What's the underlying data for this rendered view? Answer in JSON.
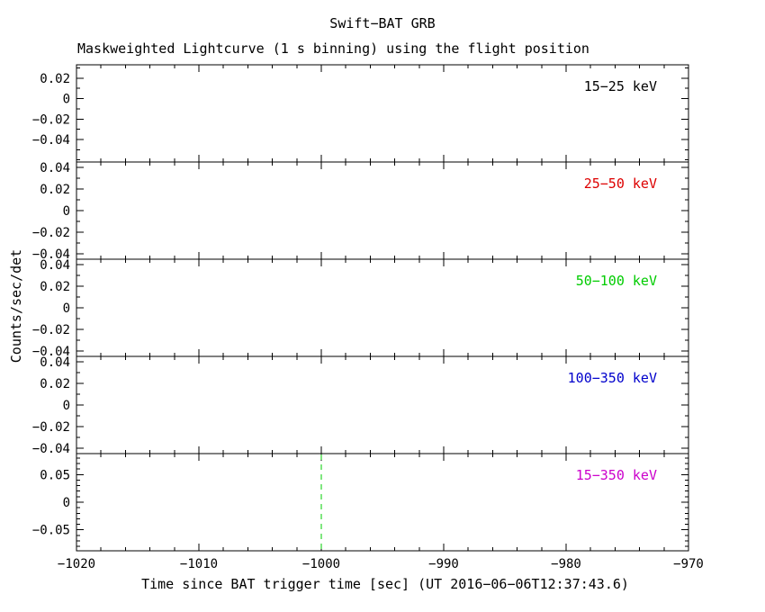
{
  "header": {
    "title": "Swift−BAT GRB",
    "subtitle": "Maskweighted Lightcurve (1 s binning) using the flight position"
  },
  "axes": {
    "xlabel": "Time since BAT trigger time [sec] (UT 2016−06−06T12:37:43.6)",
    "ylabel": "Counts/sec/det"
  },
  "chart_data": {
    "type": "line",
    "title": "Swift−BAT GRB",
    "subtitle": "Maskweighted Lightcurve (1 s binning) using the flight position",
    "xlabel": "Time since BAT trigger time [sec] (UT 2016−06−06T12:37:43.6)",
    "ylabel": "Counts/sec/det",
    "grid": false,
    "xlim": [
      -1020,
      -970
    ],
    "x_major_ticks": [
      -1020,
      -1010,
      -1000,
      -990,
      -980,
      -970
    ],
    "x_major_tick_labels": [
      "−1020",
      "−1010",
      "−1000",
      "−990",
      "−980",
      "−970"
    ],
    "x_minor_step": 2,
    "panels": [
      {
        "band": "15−25 keV",
        "color": "#000000",
        "ylim": [
          -0.062,
          0.033
        ],
        "yticks": [
          0.02,
          0,
          -0.02,
          -0.04
        ],
        "ytick_labels": [
          "0.02",
          "0",
          "−0.02",
          "−0.04"
        ],
        "y_minor_step": 0.01,
        "series": []
      },
      {
        "band": "25−50 keV",
        "color": "#dd0000",
        "ylim": [
          -0.045,
          0.045
        ],
        "yticks": [
          0.04,
          0.02,
          0,
          -0.02,
          -0.04
        ],
        "ytick_labels": [
          "0.04",
          "0.02",
          "0",
          "−0.02",
          "−0.04"
        ],
        "y_minor_step": 0.01,
        "series": []
      },
      {
        "band": "50−100 keV",
        "color": "#00cc00",
        "ylim": [
          -0.045,
          0.045
        ],
        "yticks": [
          0.04,
          0.02,
          0,
          -0.02,
          -0.04
        ],
        "ytick_labels": [
          "0.04",
          "0.02",
          "0",
          "−0.02",
          "−0.04"
        ],
        "y_minor_step": 0.01,
        "series": []
      },
      {
        "band": "100−350 keV",
        "color": "#0000cc",
        "ylim": [
          -0.045,
          0.045
        ],
        "yticks": [
          0.04,
          0.02,
          0,
          -0.02,
          -0.04
        ],
        "ytick_labels": [
          "0.04",
          "0.02",
          "0",
          "−0.02",
          "−0.04"
        ],
        "y_minor_step": 0.01,
        "series": []
      },
      {
        "band": "15−350 keV",
        "color": "#cc00cc",
        "ylim": [
          -0.088,
          0.088
        ],
        "yticks": [
          0.05,
          0,
          -0.05
        ],
        "ytick_labels": [
          "0.05",
          "0",
          "−0.05"
        ],
        "y_minor_step": 0.01,
        "series": []
      }
    ],
    "trigger_marker": {
      "x": -1000,
      "panel_index": 4,
      "color": "#00cc00",
      "line_style": "dashed"
    }
  }
}
